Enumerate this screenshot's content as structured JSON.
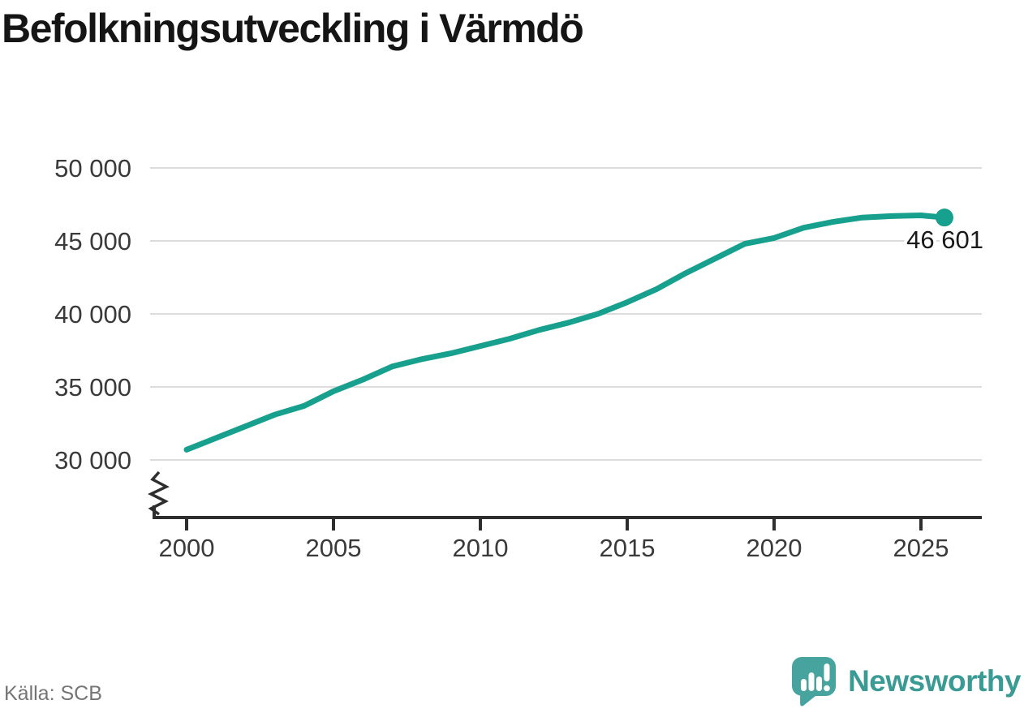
{
  "title": "Befolkningsutveckling i Värmdö",
  "source": "Källa: SCB",
  "branding": {
    "name": "Newsworthy",
    "icon": "bar-chart-speech-bubble"
  },
  "colors": {
    "line": "#17a08d",
    "grid": "#dcdcdc",
    "axis": "#2e2e2e",
    "tick_text": "#3a3a3a",
    "title_text": "#151515",
    "muted_text": "#757575",
    "brand_text": "#3a9a94",
    "brand_icon": "#46a39e"
  },
  "chart_data": {
    "type": "line",
    "title": "Befolkningsutveckling i Värmdö",
    "xlabel": "",
    "ylabel": "",
    "grid": "horizontal",
    "legend": "none",
    "axis_break_bottom": true,
    "xlim": [
      1998.8,
      2027.1
    ],
    "ylim": [
      30000,
      50000
    ],
    "x_ticks": [
      2000,
      2005,
      2010,
      2015,
      2020,
      2025
    ],
    "x_tick_labels": [
      "2000",
      "2005",
      "2010",
      "2015",
      "2020",
      "2025"
    ],
    "y_ticks": [
      30000,
      35000,
      40000,
      45000,
      50000
    ],
    "y_tick_labels": [
      "30 000",
      "35 000",
      "40 000",
      "45 000",
      "50 000"
    ],
    "x": [
      2000,
      2001,
      2002,
      2003,
      2004,
      2005,
      2006,
      2007,
      2008,
      2009,
      2010,
      2011,
      2012,
      2013,
      2014,
      2015,
      2016,
      2017,
      2018,
      2019,
      2020,
      2021,
      2022,
      2023,
      2024,
      2025,
      2025.8
    ],
    "values": [
      30700,
      31500,
      32300,
      33100,
      33700,
      34700,
      35500,
      36400,
      36900,
      37300,
      37800,
      38300,
      38900,
      39400,
      40000,
      40800,
      41700,
      42800,
      43800,
      44800,
      45200,
      45900,
      46300,
      46600,
      46700,
      46750,
      46601
    ],
    "last_value": 46601,
    "end_point_label": "46 601"
  }
}
